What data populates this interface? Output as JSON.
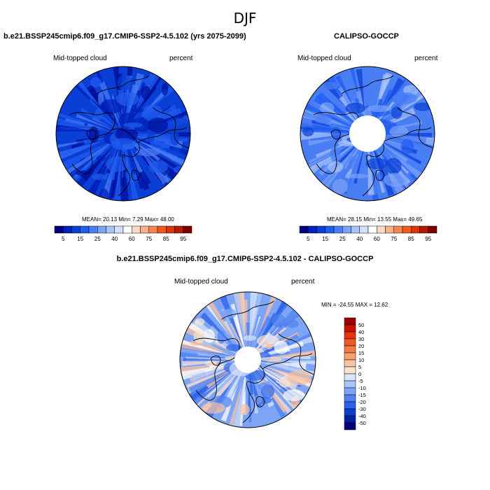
{
  "page_title": "DJF",
  "chart_data": [
    {
      "type": "heatmap",
      "projection": "north polar stereographic",
      "title": "b.e21.BSSP245cmip6.f09_g17.CMIP6-SSP2-4.5.102 (yrs 2075-2099)",
      "left_label": "Mid-topped cloud",
      "right_label": "percent",
      "stats_text": "MEAN=  20.13  Min=   7.29  Max=  48.00",
      "stats": {
        "mean": 20.13,
        "min": 7.29,
        "max": 48.0
      },
      "colorbar": {
        "orientation": "horizontal",
        "tick_labels": [
          "5",
          "15",
          "25",
          "40",
          "60",
          "75",
          "85",
          "95"
        ],
        "colors": [
          "#000080",
          "#0020b8",
          "#0a3fd6",
          "#1f5cf0",
          "#4a7ef5",
          "#7aa2f7",
          "#a8c3f9",
          "#d2e0fb",
          "#ffffff",
          "#fbd9c6",
          "#f7b08a",
          "#f4854f",
          "#ef5b1f",
          "#dc3408",
          "#b31a00",
          "#800000"
        ]
      }
    },
    {
      "type": "heatmap",
      "projection": "north polar stereographic",
      "title": "CALIPSO-GOCCP",
      "left_label": "Mid-topped cloud",
      "right_label": "percent",
      "stats_text": "MEAN=  28.15  Min=  13.55  Max=  49.65",
      "stats": {
        "mean": 28.15,
        "min": 13.55,
        "max": 49.65
      },
      "colorbar": {
        "orientation": "horizontal",
        "tick_labels": [
          "5",
          "15",
          "25",
          "40",
          "60",
          "75",
          "85",
          "95"
        ],
        "colors": [
          "#000080",
          "#0020b8",
          "#0a3fd6",
          "#1f5cf0",
          "#4a7ef5",
          "#7aa2f7",
          "#a8c3f9",
          "#d2e0fb",
          "#ffffff",
          "#fbd9c6",
          "#f7b08a",
          "#f4854f",
          "#ef5b1f",
          "#dc3408",
          "#b31a00",
          "#800000"
        ]
      }
    },
    {
      "type": "heatmap",
      "projection": "north polar stereographic",
      "title": "b.e21.BSSP245cmip6.f09_g17.CMIP6-SSP2-4.5.102 - CALIPSO-GOCCP",
      "left_label": "Mid-topped cloud",
      "right_label": "percent",
      "stats_text": "MIN = -24.55 MAX =  12.62",
      "stats": {
        "min": -24.55,
        "max": 12.62
      },
      "colorbar": {
        "orientation": "vertical",
        "tick_labels": [
          "50",
          "40",
          "30",
          "20",
          "15",
          "10",
          "5",
          "0",
          "-5",
          "-10",
          "-15",
          "-20",
          "-30",
          "-40",
          "-50"
        ],
        "colors": [
          "#990000",
          "#cc1100",
          "#e8350a",
          "#f05a25",
          "#f47c45",
          "#f7a070",
          "#f9c2a0",
          "#fbe2d0",
          "#d8e6fb",
          "#a9c4f8",
          "#7da4f5",
          "#5082f1",
          "#2a62e8",
          "#0b3dcc",
          "#0020a0",
          "#00007a"
        ]
      }
    }
  ]
}
